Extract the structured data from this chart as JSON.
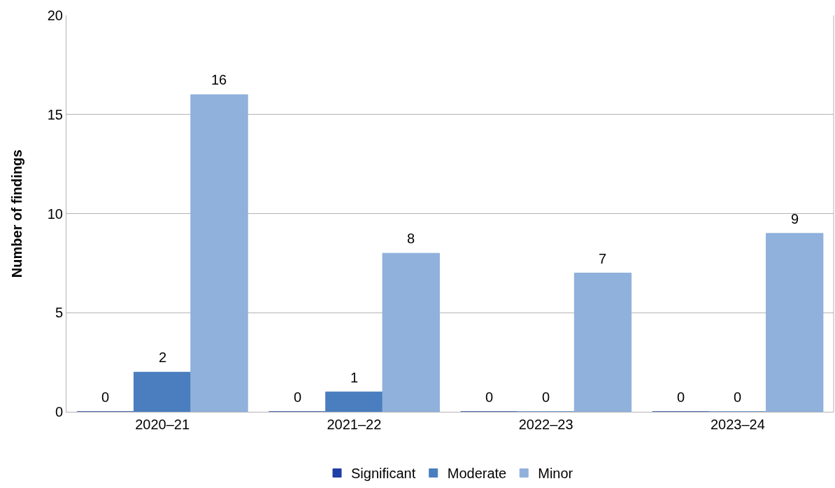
{
  "chart_data": {
    "type": "bar",
    "ylabel": "Number of findings",
    "categories": [
      "2020–21",
      "2021–22",
      "2022–23",
      "2023–24"
    ],
    "series": [
      {
        "name": "Significant",
        "color": "#1f3fa6",
        "values": [
          0,
          0,
          0,
          0
        ]
      },
      {
        "name": "Moderate",
        "color": "#4a7ebf",
        "values": [
          2,
          1,
          0,
          0
        ]
      },
      {
        "name": "Minor",
        "color": "#8fb1db",
        "values": [
          16,
          8,
          7,
          9
        ]
      }
    ],
    "ylim": [
      0,
      20
    ],
    "yticks": [
      0,
      5,
      10,
      15,
      20
    ],
    "grid": "y",
    "legend": "bottom",
    "data_labels": true
  }
}
